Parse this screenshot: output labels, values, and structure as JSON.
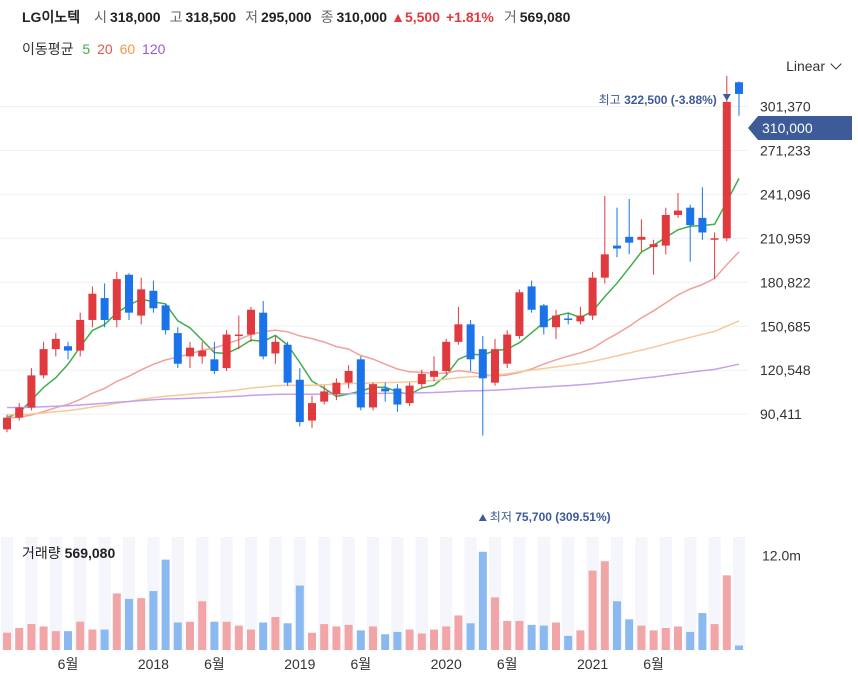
{
  "header": {
    "name": "LG이노텍",
    "open_label": "시",
    "open": "318,000",
    "high_label": "고",
    "high": "318,500",
    "low_label": "저",
    "low": "295,000",
    "close_label": "종",
    "close": "310,000",
    "change": "▲5,500",
    "change_pct": "+1.81%",
    "volume_label": "거",
    "volume": "569,080"
  },
  "ma_legend": {
    "label": "이동평균",
    "periods": [
      {
        "label": "5",
        "color": "#3fae49"
      },
      {
        "label": "20",
        "color": "#e8554e"
      },
      {
        "label": "60",
        "color": "#f09a4a"
      },
      {
        "label": "120",
        "color": "#9b59d0"
      }
    ]
  },
  "scale_toggle": "Linear",
  "volume_panel": {
    "label": "거래량",
    "value": "569,080"
  },
  "colors": {
    "up": "#e03a3e",
    "down": "#1a73e8",
    "vol_up": "#f2a5a6",
    "vol_down": "#8ab8f0",
    "badge": "#3d5a99"
  },
  "chart_data": {
    "type": "candlestick",
    "interval": "monthly",
    "y_ticks": [
      "301,370",
      "271,233",
      "241,096",
      "210,959",
      "180,822",
      "150,685",
      "120,548",
      "90,411"
    ],
    "ylim": [
      75000,
      330000
    ],
    "x_ticks": [
      {
        "label": "6월",
        "index": 5
      },
      {
        "label": "2018",
        "index": 12
      },
      {
        "label": "6월",
        "index": 17
      },
      {
        "label": "2019",
        "index": 24
      },
      {
        "label": "6월",
        "index": 29
      },
      {
        "label": "2020",
        "index": 36
      },
      {
        "label": "6월",
        "index": 41
      },
      {
        "label": "2021",
        "index": 48
      },
      {
        "label": "6월",
        "index": 53
      }
    ],
    "current_price_label": "310,000",
    "max_annotation": {
      "label": "최고",
      "value": "322,500 (-3.88%)",
      "index": 59
    },
    "min_annotation": {
      "label": "최저",
      "value": "75,700 (309.51%)",
      "index": 39
    },
    "vol_axis_label": "12.0m",
    "vol_max": 14000000,
    "candles": [
      [
        80000,
        90000,
        78000,
        88000
      ],
      [
        88000,
        98000,
        86000,
        95000
      ],
      [
        95000,
        122000,
        93000,
        117000
      ],
      [
        117000,
        140000,
        115000,
        135000
      ],
      [
        135000,
        146000,
        130000,
        142000
      ],
      [
        137000,
        140000,
        128000,
        134000
      ],
      [
        134000,
        160000,
        130000,
        155000
      ],
      [
        155000,
        178000,
        150000,
        173000
      ],
      [
        170000,
        180000,
        150000,
        155000
      ],
      [
        155000,
        188000,
        150000,
        183000
      ],
      [
        186000,
        187000,
        155000,
        160000
      ],
      [
        158000,
        184000,
        152000,
        176000
      ],
      [
        175000,
        182000,
        160000,
        163000
      ],
      [
        165000,
        166000,
        145000,
        148000
      ],
      [
        146000,
        150000,
        122000,
        125000
      ],
      [
        130000,
        140000,
        122000,
        136000
      ],
      [
        130000,
        140000,
        125000,
        134000
      ],
      [
        128000,
        140000,
        118000,
        120000
      ],
      [
        122000,
        148000,
        120000,
        145000
      ],
      [
        145000,
        158000,
        135000,
        145000
      ],
      [
        145000,
        164000,
        140000,
        162000
      ],
      [
        160000,
        168000,
        128000,
        130000
      ],
      [
        132000,
        144000,
        125000,
        140000
      ],
      [
        138000,
        140000,
        110000,
        112000
      ],
      [
        114000,
        122000,
        82000,
        85000
      ],
      [
        86000,
        103000,
        81000,
        98000
      ],
      [
        99000,
        110000,
        97000,
        106000
      ],
      [
        104000,
        115000,
        100000,
        112000
      ],
      [
        112000,
        124000,
        108000,
        120000
      ],
      [
        128000,
        130000,
        93000,
        95000
      ],
      [
        95000,
        112000,
        93000,
        111000
      ],
      [
        108000,
        112000,
        99000,
        106000
      ],
      [
        108000,
        111000,
        92000,
        97000
      ],
      [
        98000,
        112000,
        96000,
        110000
      ],
      [
        111000,
        121000,
        108000,
        118000
      ],
      [
        116000,
        130000,
        113000,
        120000
      ],
      [
        120000,
        142000,
        118000,
        140000
      ],
      [
        140000,
        164000,
        138000,
        152000
      ],
      [
        152000,
        155000,
        120000,
        128000
      ],
      [
        135000,
        144000,
        75700,
        115000
      ],
      [
        112000,
        142000,
        110000,
        135000
      ],
      [
        125000,
        148000,
        122000,
        145000
      ],
      [
        144000,
        176000,
        142000,
        174000
      ],
      [
        178000,
        182000,
        160000,
        162000
      ],
      [
        165000,
        166000,
        145000,
        150000
      ],
      [
        150000,
        162000,
        142000,
        158000
      ],
      [
        156000,
        160000,
        152000,
        155000
      ],
      [
        154000,
        164000,
        152000,
        158000
      ],
      [
        158000,
        188000,
        155000,
        184000
      ],
      [
        184000,
        240000,
        180000,
        200000
      ],
      [
        206000,
        232000,
        198000,
        204000
      ],
      [
        212000,
        238000,
        200000,
        208000
      ],
      [
        210000,
        224000,
        202000,
        212000
      ],
      [
        205000,
        210000,
        186000,
        207000
      ],
      [
        206000,
        232000,
        200000,
        227000
      ],
      [
        227000,
        242000,
        225000,
        230000
      ],
      [
        232000,
        234000,
        195000,
        220000
      ],
      [
        225000,
        246000,
        210000,
        215000
      ],
      [
        210000,
        215000,
        183000,
        211000
      ],
      [
        211000,
        322500,
        209000,
        304500
      ],
      [
        318000,
        318500,
        295000,
        310000
      ]
    ],
    "volume": [
      2200000,
      2800000,
      3300000,
      3000000,
      2400000,
      2400000,
      3600000,
      2600000,
      2600000,
      7200000,
      6500000,
      6600000,
      7500000,
      11500000,
      3500000,
      3600000,
      6200000,
      3600000,
      3600000,
      3100000,
      2600000,
      3500000,
      4200000,
      3400000,
      8200000,
      2200000,
      3300000,
      3000000,
      3200000,
      2500000,
      3000000,
      2000000,
      2300000,
      2600000,
      2100000,
      2600000,
      3000000,
      4400000,
      3400000,
      12500000,
      6700000,
      3700000,
      3700000,
      3200000,
      3100000,
      3500000,
      1800000,
      2500000,
      10100000,
      11300000,
      6200000,
      3900000,
      3100000,
      2500000,
      2800000,
      3000000,
      2300000,
      4700000,
      3300000,
      9500000,
      569080
    ],
    "ma5": [],
    "ma20": [],
    "ma60": [],
    "ma120": []
  }
}
